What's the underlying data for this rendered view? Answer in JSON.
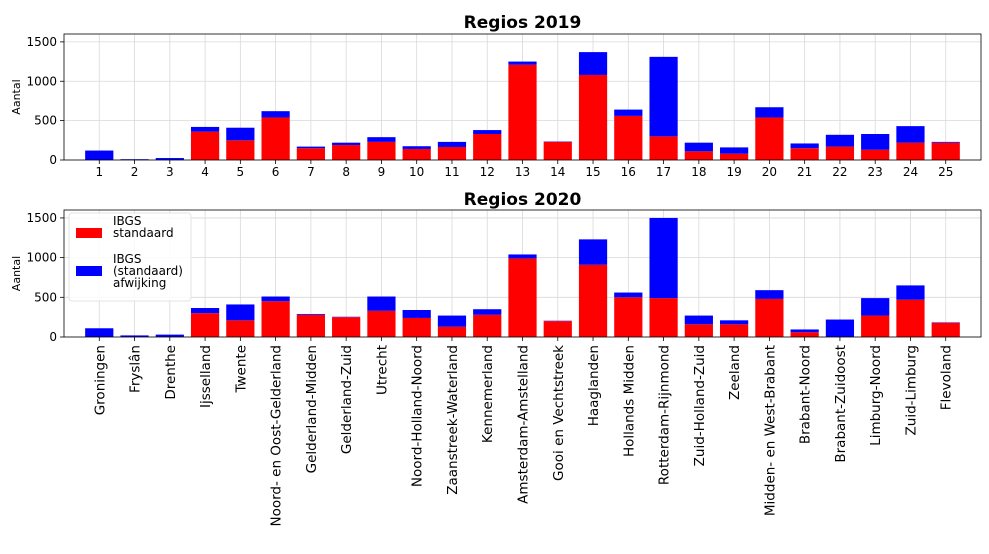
{
  "chart_data": [
    {
      "type": "bar",
      "stacked": true,
      "title": "Regios 2019",
      "ylabel": "Aantal",
      "xlabel": "",
      "ylim": [
        0,
        1600
      ],
      "yticks": [
        0,
        500,
        1000,
        1500
      ],
      "grid": true,
      "categories": [
        "1",
        "2",
        "3",
        "4",
        "5",
        "6",
        "7",
        "8",
        "9",
        "10",
        "11",
        "12",
        "13",
        "14",
        "15",
        "16",
        "17",
        "18",
        "19",
        "20",
        "21",
        "22",
        "23",
        "24",
        "25"
      ],
      "series": [
        {
          "name": "IBGS standaard",
          "color": "#ff0000",
          "values": [
            0,
            0,
            0,
            360,
            250,
            540,
            150,
            190,
            230,
            140,
            165,
            330,
            1210,
            230,
            1080,
            560,
            300,
            110,
            80,
            540,
            150,
            170,
            130,
            220,
            220
          ]
        },
        {
          "name": "IBGS (standaard) afwijking",
          "color": "#0000ff",
          "values": [
            120,
            10,
            25,
            60,
            160,
            80,
            20,
            30,
            60,
            35,
            65,
            50,
            40,
            5,
            290,
            80,
            1010,
            110,
            80,
            130,
            60,
            150,
            200,
            210,
            10
          ]
        }
      ]
    },
    {
      "type": "bar",
      "stacked": true,
      "title": "Regios 2020",
      "ylabel": "Aantal",
      "xlabel": "",
      "ylim": [
        0,
        1600
      ],
      "yticks": [
        0,
        500,
        1000,
        1500
      ],
      "grid": true,
      "legend": {
        "position": "top-left",
        "entries": [
          {
            "label": "IBGS\nstandaard",
            "color": "#ff0000"
          },
          {
            "label": "IBGS\n(standaard)\nafwijking",
            "color": "#0000ff"
          }
        ]
      },
      "categories": [
        "Groningen",
        "Fryslân",
        "Drenthe",
        "Ijsselland",
        "Twente",
        "Noord- en Oost-Gelderland",
        "Gelderland-Midden",
        "Gelderland-Zuid",
        "Utrecht",
        "Noord-Holland-Noord",
        "Zaanstreek-Waterland",
        "Kennemerland",
        "Amsterdam-Amstelland",
        "Gooi en Vechtstreek",
        "Haaglanden",
        "Hollands Midden",
        "Rotterdam-Rijnmond",
        "Zuid-Holland-Zuid",
        "Zeeland",
        "Midden- en West-Brabant",
        "Brabant-Noord",
        "Brabant-Zuidoost",
        "Limburg-Noord",
        "Zuid-Limburg",
        "Flevoland"
      ],
      "series": [
        {
          "name": "IBGS standaard",
          "color": "#ff0000",
          "values": [
            0,
            0,
            0,
            300,
            210,
            450,
            280,
            250,
            330,
            240,
            130,
            280,
            990,
            200,
            910,
            500,
            490,
            160,
            160,
            480,
            60,
            0,
            270,
            470,
            180
          ]
        },
        {
          "name": "IBGS (standaard) afwijking",
          "color": "#0000ff",
          "values": [
            110,
            20,
            30,
            65,
            200,
            60,
            10,
            5,
            180,
            100,
            140,
            70,
            50,
            5,
            320,
            60,
            1010,
            110,
            50,
            110,
            35,
            220,
            220,
            180,
            5
          ]
        }
      ]
    }
  ]
}
